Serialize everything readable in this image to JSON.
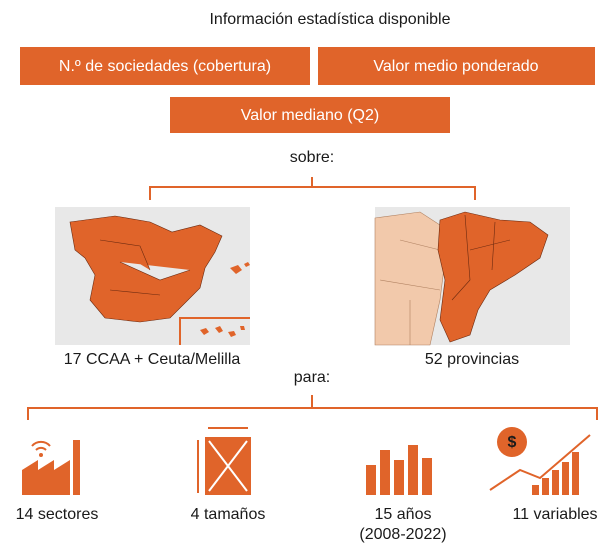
{
  "header": {
    "title": "Información estadística disponible"
  },
  "metrics": [
    "N.º de sociedades (cobertura)",
    "Valor medio ponderado",
    "Valor mediano (Q2)"
  ],
  "over": {
    "label": "sobre:",
    "maps": [
      "17 CCAA + Ceuta/Melilla",
      "52 provincias"
    ]
  },
  "for": {
    "label": "para:",
    "items": [
      {
        "label": "14 sectores"
      },
      {
        "label": "4 tamaños"
      },
      {
        "label": "15 años",
        "detail": "(2008-2022)"
      },
      {
        "label": "11 variables"
      }
    ]
  }
}
